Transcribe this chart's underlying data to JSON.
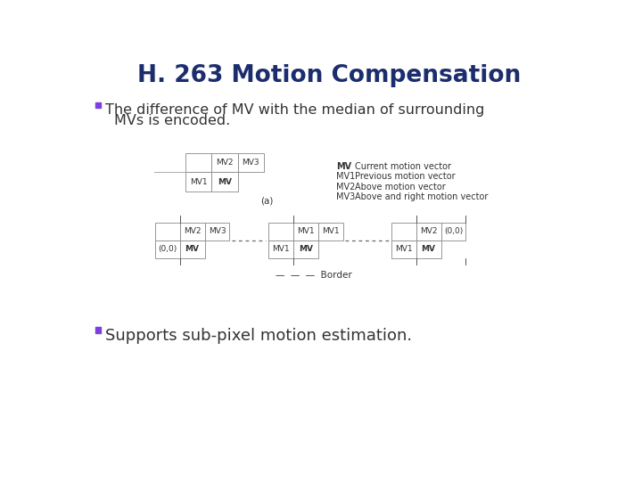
{
  "title": "H. 263 Motion Compensation",
  "title_color": "#1c2d6e",
  "title_fontsize": 19,
  "title_fontweight": "bold",
  "bg_color": "#ffffff",
  "bullet_color": "#7b3fe4",
  "bullet1_line1": "The difference of MV with the median of surrounding",
  "bullet1_line2": "MVs is encoded.",
  "bullet2": "Supports sub-pixel motion estimation.",
  "bullet1_fontsize": 11.5,
  "bullet2_fontsize": 13,
  "legend_labels": [
    "MV",
    "MV1",
    "MV2",
    "MV3"
  ],
  "legend_desc": [
    "Current motion vector",
    "Previous motion vector",
    "Above motion vector",
    "Above and right motion vector"
  ],
  "caption_a": "(a)",
  "border_label": "Border",
  "cell_text_fontsize": 6.5,
  "legend_fontsize": 7.0,
  "caption_fontsize": 7.5
}
